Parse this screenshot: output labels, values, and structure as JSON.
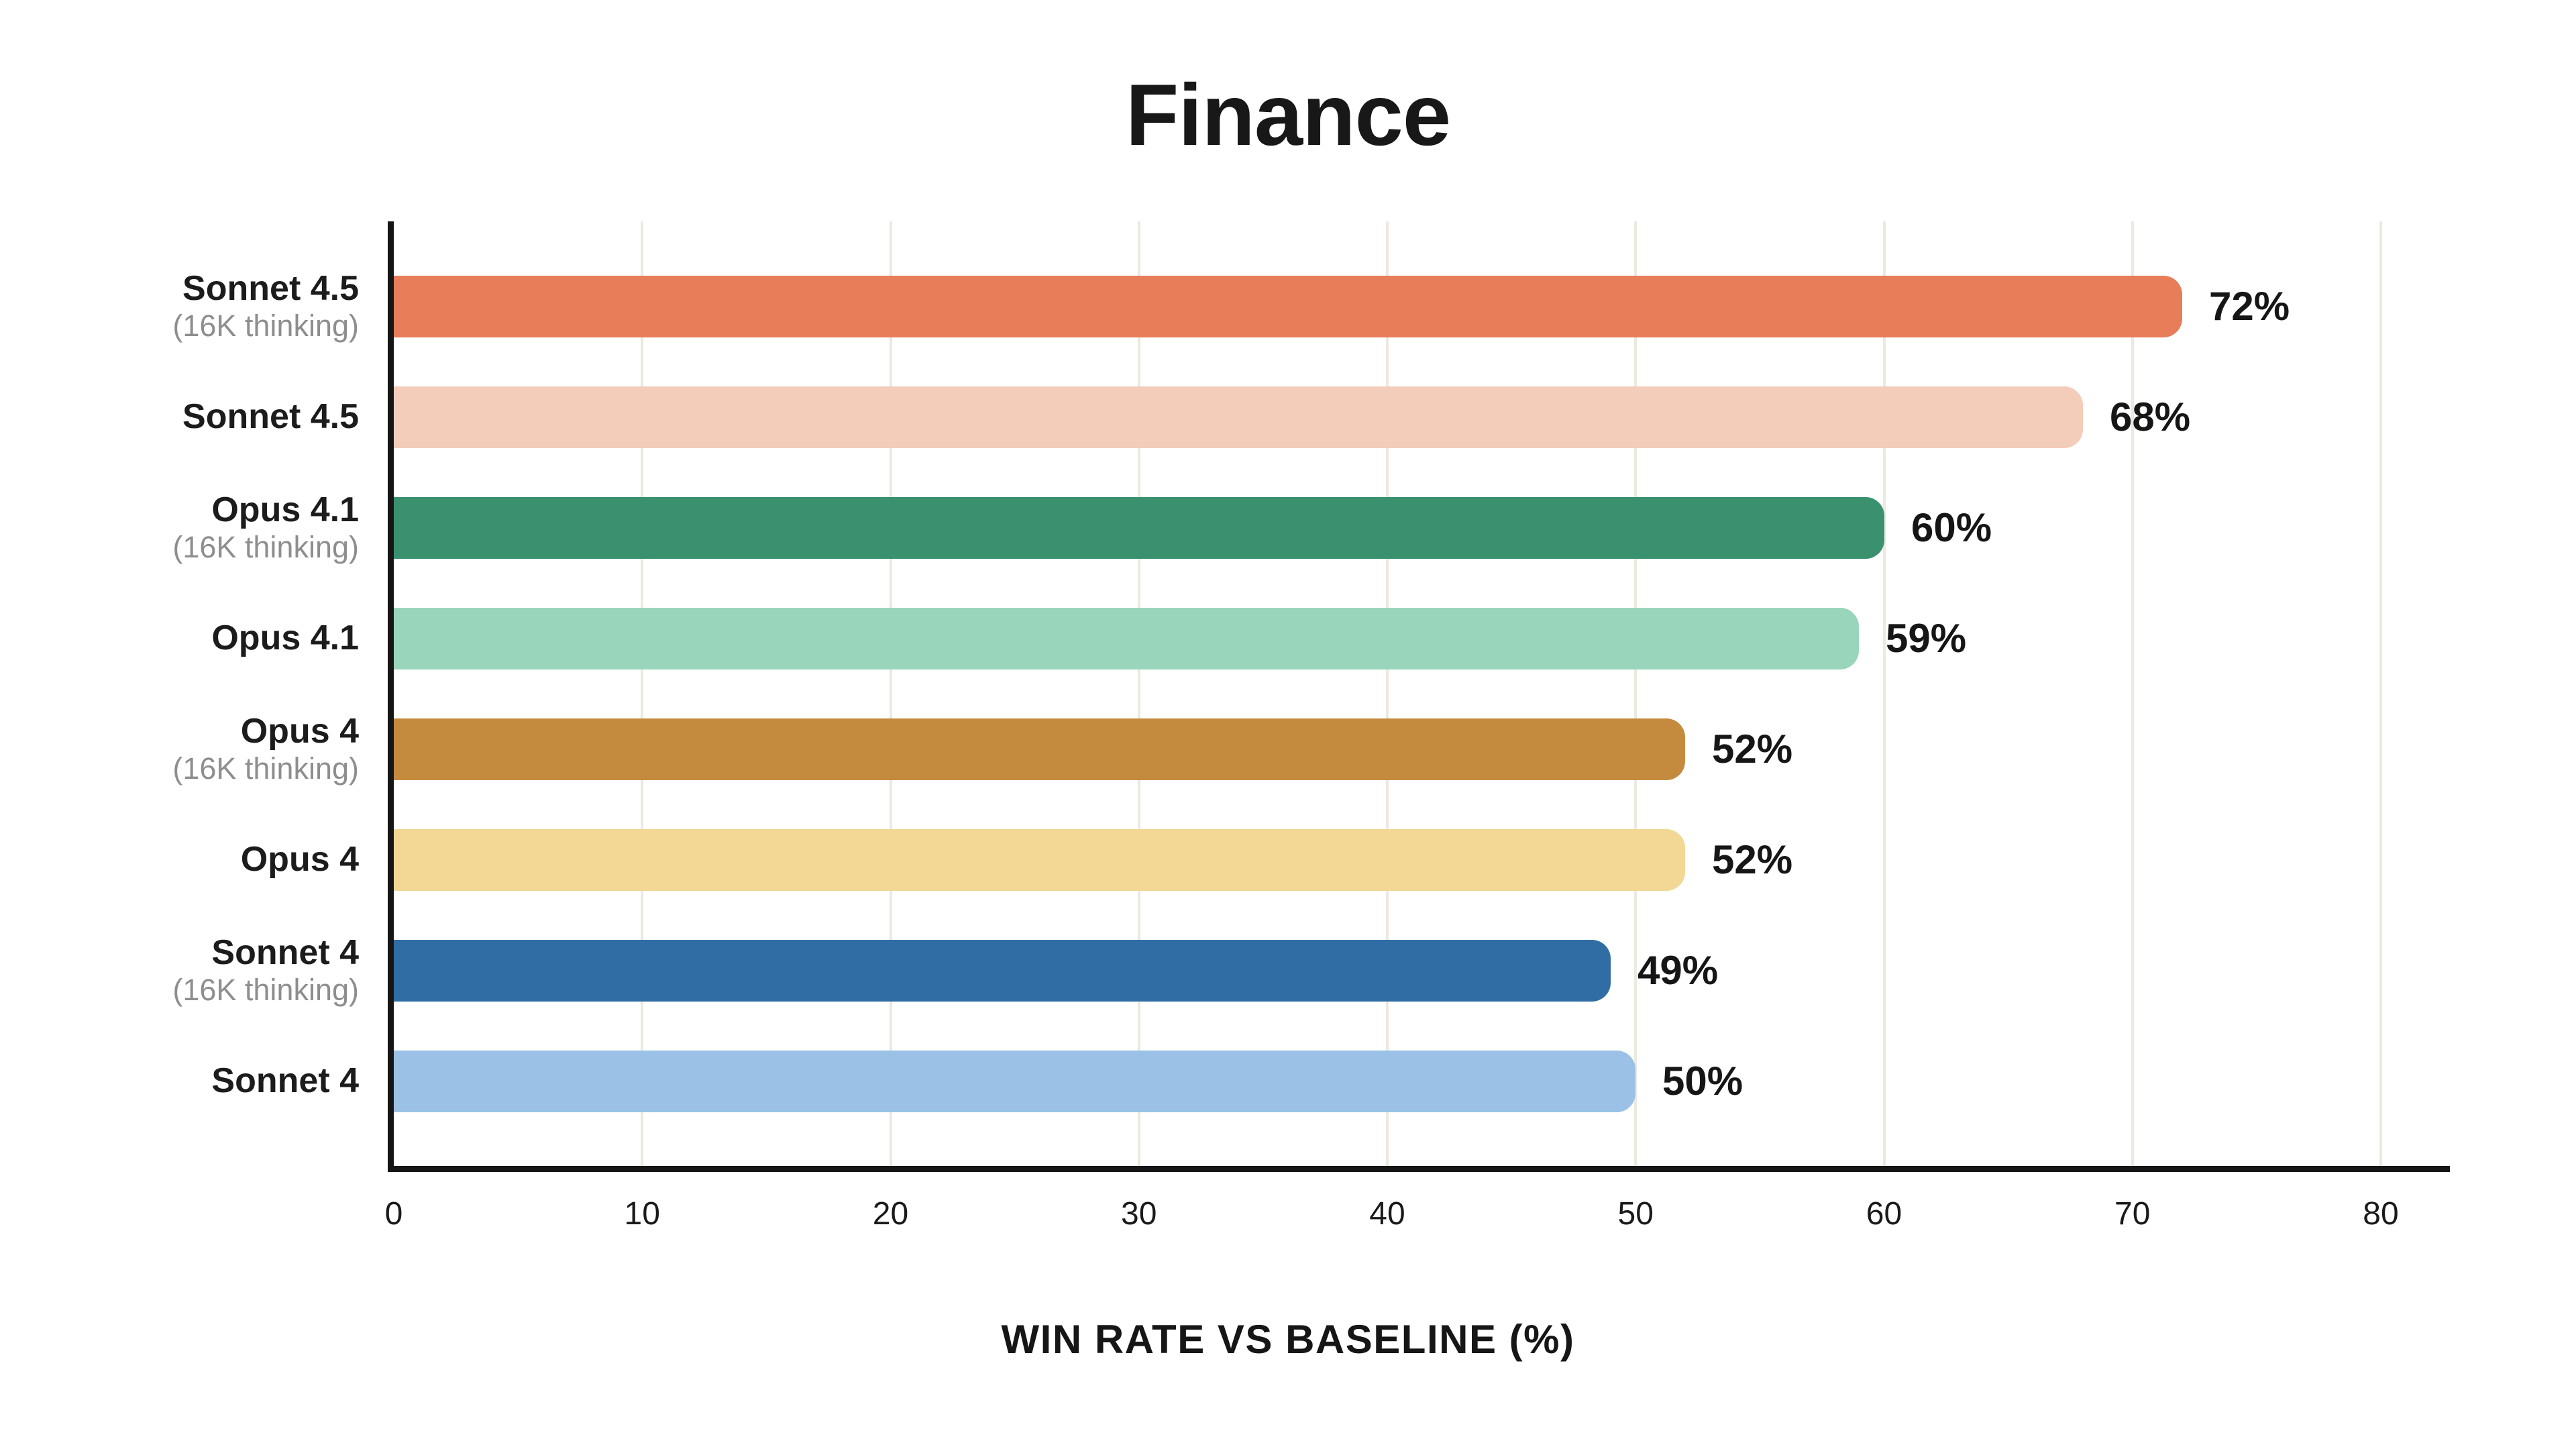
{
  "chart_data": {
    "type": "bar",
    "orientation": "horizontal",
    "title": "Finance",
    "xlabel": "WIN RATE VS BASELINE (%)",
    "xlim": [
      0,
      80
    ],
    "xticks": [
      0,
      10,
      20,
      30,
      40,
      50,
      60,
      70,
      80
    ],
    "grid": "vertical",
    "gridline_color": "#ECE9DF",
    "axis_color": "#161616",
    "background_color": "#FFFFFF",
    "label_color": "#1C1C1C",
    "sublabel_color": "#8E8E8E",
    "legend": "none",
    "bars": [
      {
        "label": "Sonnet 4.5",
        "sublabel": "(16K thinking)",
        "value": 72,
        "display": "72%",
        "color": "#E87D59"
      },
      {
        "label": "Sonnet 4.5",
        "sublabel": "",
        "value": 68,
        "display": "68%",
        "color": "#F4CCBA"
      },
      {
        "label": "Opus 4.1",
        "sublabel": "(16K thinking)",
        "value": 60,
        "display": "60%",
        "color": "#3A916F"
      },
      {
        "label": "Opus 4.1",
        "sublabel": "",
        "value": 59,
        "display": "59%",
        "color": "#99D5BA"
      },
      {
        "label": "Opus 4",
        "sublabel": "(16K thinking)",
        "value": 52,
        "display": "52%",
        "color": "#C48B3F"
      },
      {
        "label": "Opus 4",
        "sublabel": "",
        "value": 52,
        "display": "52%",
        "color": "#F2D795"
      },
      {
        "label": "Sonnet 4",
        "sublabel": "(16K thinking)",
        "value": 49,
        "display": "49%",
        "color": "#316DA5"
      },
      {
        "label": "Sonnet 4",
        "sublabel": "",
        "value": 50,
        "display": "50%",
        "color": "#9BC2E6"
      }
    ]
  }
}
